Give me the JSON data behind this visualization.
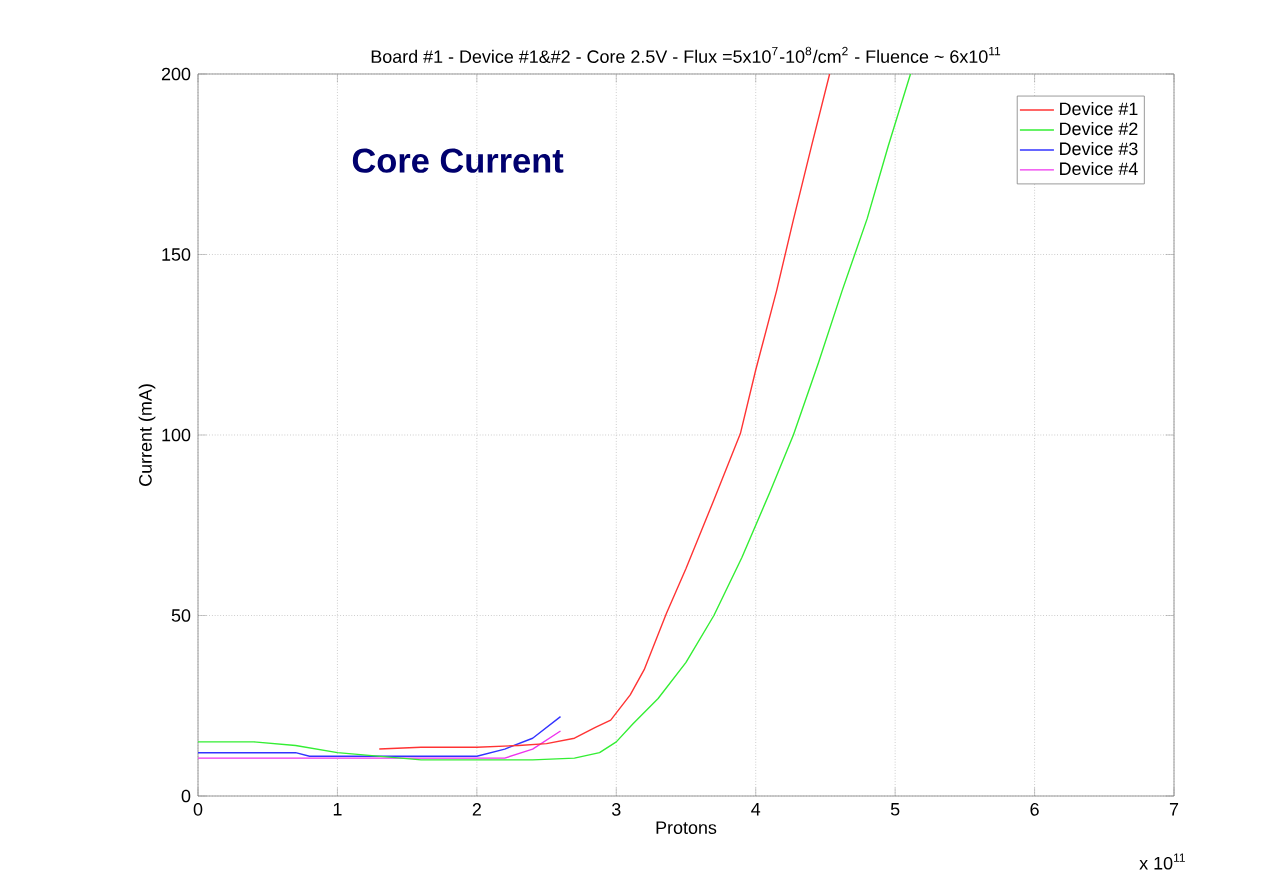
{
  "chart_data": {
    "type": "line",
    "title": "Board #1 - Device #1&#2 - Core 2.5V - Flux =5x10$^{7}$-10$^{8}$/cm$^{2}$ - Fluence ~ 6x10$^{11}$",
    "xlabel": "Protons",
    "ylabel": "Current (mA)",
    "annotations": [
      "Core Current",
      "x 10$^{11}$"
    ],
    "xlim": [
      0,
      7
    ],
    "ylim": [
      0,
      200
    ],
    "xticks": [
      0,
      1,
      2,
      3,
      4,
      5,
      6,
      7
    ],
    "yticks": [
      0,
      50,
      100,
      150,
      200
    ],
    "grid": true,
    "legend": "top right",
    "line_style": "solid",
    "marker": "none",
    "series": [
      {
        "name": "Device #1",
        "color": "#ff3333",
        "x": [
          1.3,
          1.6,
          2.0,
          2.3,
          2.5,
          2.7,
          2.85,
          2.96,
          3.1,
          3.2,
          3.36,
          3.5,
          3.7,
          3.89,
          4.0,
          4.15,
          4.27,
          4.4,
          4.53
        ],
        "values": [
          13,
          13.5,
          13.5,
          14,
          14.5,
          16,
          19,
          21,
          28,
          35,
          50.6,
          63,
          82,
          100.4,
          118,
          140,
          159.6,
          180,
          200
        ]
      },
      {
        "name": "Device #2",
        "color": "#33ee33",
        "x": [
          0,
          0.4,
          0.7,
          1.0,
          1.3,
          1.6,
          2.0,
          2.4,
          2.7,
          2.88,
          3.0,
          3.12,
          3.3,
          3.5,
          3.7,
          3.9,
          4.1,
          4.27,
          4.45,
          4.62,
          4.8,
          4.95,
          5.11
        ],
        "values": [
          15,
          15,
          14,
          12,
          11,
          10,
          10,
          10,
          10.5,
          12,
          15,
          20,
          27,
          37,
          50,
          66,
          84,
          100,
          120,
          140,
          160,
          180,
          200
        ]
      },
      {
        "name": "Device #3",
        "color": "#3333ff",
        "x": [
          0,
          0.3,
          0.7,
          0.8,
          1.2,
          1.6,
          2.0,
          2.2,
          2.4,
          2.6
        ],
        "values": [
          12,
          12,
          12,
          11,
          11,
          11,
          11,
          13,
          16,
          22
        ]
      },
      {
        "name": "Device #4",
        "color": "#ee33ee",
        "x": [
          0,
          0.3,
          0.7,
          1.0,
          1.4,
          1.8,
          2.2,
          2.4,
          2.6
        ],
        "values": [
          10.5,
          10.5,
          10.5,
          10.5,
          10.5,
          10.5,
          10.5,
          13,
          18
        ]
      }
    ]
  }
}
